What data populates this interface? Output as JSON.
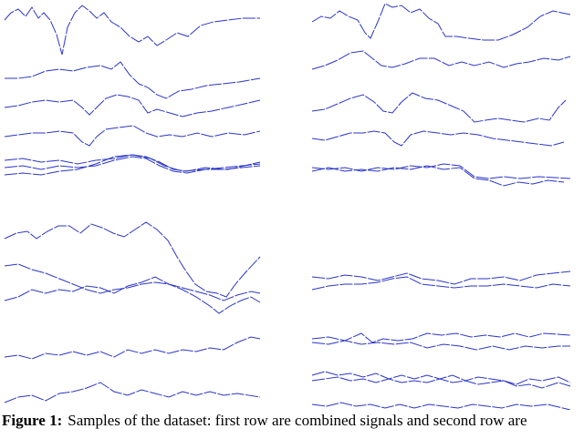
{
  "figure": {
    "caption_label": "Figure 1:",
    "caption_text": "Samples of the dataset: first row are combined signals and second row are"
  }
}
